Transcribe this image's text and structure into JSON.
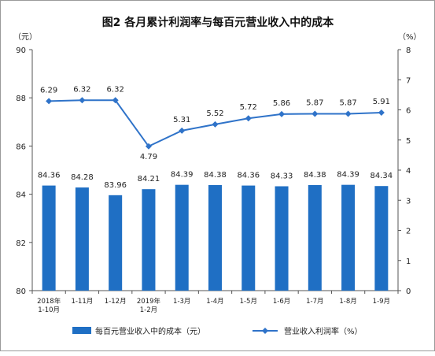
{
  "chart_data": {
    "type": "bar+line",
    "title": "图2 各月累计利润率与每百元营业收入中的成本",
    "left_unit": "（元）",
    "right_unit": "（%）",
    "categories": [
      [
        "2018年",
        "1-10月"
      ],
      [
        "1-11月"
      ],
      [
        "1-12月"
      ],
      [
        "2019年",
        "1-2月"
      ],
      [
        "1-3月"
      ],
      [
        "1-4月"
      ],
      [
        "1-5月"
      ],
      [
        "1-6月"
      ],
      [
        "1-7月"
      ],
      [
        "1-8月"
      ],
      [
        "1-9月"
      ]
    ],
    "left_axis": {
      "min": 80,
      "max": 90,
      "ticks": [
        "80",
        "82",
        "84",
        "86",
        "88",
        "90"
      ]
    },
    "right_axis": {
      "min": 0,
      "max": 8,
      "ticks": [
        "0",
        "1",
        "2",
        "3",
        "4",
        "5",
        "6",
        "7",
        "8"
      ]
    },
    "series": [
      {
        "name": "每百元营业收入中的成本（元）",
        "type": "bar",
        "axis": "left",
        "color": "#1f6fc4",
        "values": [
          84.36,
          84.28,
          83.96,
          84.21,
          84.39,
          84.38,
          84.36,
          84.33,
          84.38,
          84.39,
          84.34
        ],
        "labels": [
          "84.36",
          "84.28",
          "83.96",
          "84.21",
          "84.39",
          "84.38",
          "84.36",
          "84.33",
          "84.38",
          "84.39",
          "84.34"
        ]
      },
      {
        "name": "营业收入利润率（%）",
        "type": "line",
        "axis": "right",
        "color": "#2f73c9",
        "values": [
          6.29,
          6.32,
          6.32,
          4.79,
          5.31,
          5.52,
          5.72,
          5.86,
          5.87,
          5.87,
          5.91
        ],
        "labels": [
          "6.29",
          "6.32",
          "6.32",
          "4.79",
          "5.31",
          "5.52",
          "5.72",
          "5.86",
          "5.87",
          "5.87",
          "5.91"
        ]
      }
    ],
    "grid": false,
    "legend_position": "bottom"
  }
}
